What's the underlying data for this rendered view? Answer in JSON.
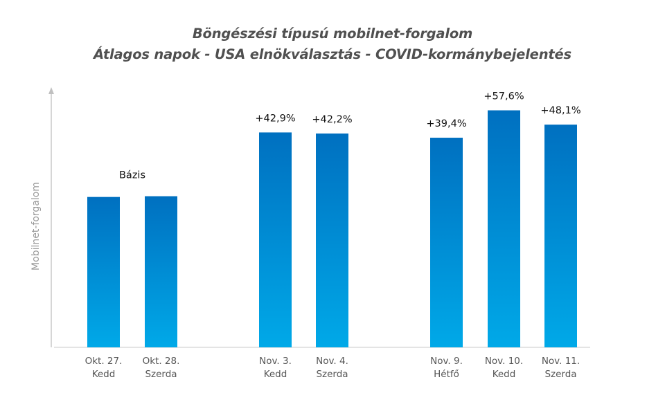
{
  "chart_data": {
    "type": "bar",
    "title": "Böngészési típusú mobilnet-forgalom",
    "subtitle": "Átlagos napok - USA elnökválasztás - COVID-kormánybejelentés",
    "xlabel": "",
    "ylabel": "Mobilnet-forgalom",
    "ylim": [
      0,
      173
    ],
    "grid": false,
    "legend": "none",
    "colors": {
      "bar_top": "#0070c0",
      "bar_bottom": "#00a9e8",
      "axis": "#c0c0c0",
      "ylabel": "#9a9a9a",
      "title": "#505050"
    },
    "groups": [
      {
        "bars": [
          0,
          1
        ]
      },
      {
        "bars": [
          2,
          3
        ]
      },
      {
        "bars": [
          4,
          5,
          6
        ]
      }
    ],
    "categories": [
      {
        "line1": "Okt. 27.",
        "line2": "Kedd"
      },
      {
        "line1": "Okt. 28.",
        "line2": "Szerda"
      },
      {
        "line1": "Nov. 3.",
        "line2": "Kedd"
      },
      {
        "line1": "Nov. 4.",
        "line2": "Szerda"
      },
      {
        "line1": "Nov. 9.",
        "line2": "Hétfő"
      },
      {
        "line1": "Nov. 10.",
        "line2": "Kedd"
      },
      {
        "line1": "Nov. 11.",
        "line2": "Szerda"
      }
    ],
    "values": [
      100,
      100.5,
      142.9,
      142.2,
      139.4,
      157.6,
      148.1
    ],
    "data_labels": [
      "",
      "Bázis",
      "+42,9%",
      "+42,2%",
      "+39,4%",
      "+57,6%",
      "+48,1%"
    ],
    "base_label": "Bázis",
    "base_label_covers": [
      0,
      1
    ]
  }
}
